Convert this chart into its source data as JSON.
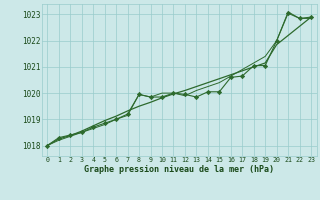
{
  "title": "Graphe pression niveau de la mer (hPa)",
  "background_color": "#cce8e8",
  "plot_bg_color": "#cce8e8",
  "grid_color": "#99cccc",
  "line_color": "#2d6a2d",
  "marker_color": "#2d6a2d",
  "text_color": "#1a4a1a",
  "xlim": [
    -0.5,
    23.5
  ],
  "ylim": [
    1017.6,
    1023.4
  ],
  "yticks": [
    1018,
    1019,
    1020,
    1021,
    1022,
    1023
  ],
  "xticks": [
    0,
    1,
    2,
    3,
    4,
    5,
    6,
    7,
    8,
    9,
    10,
    11,
    12,
    13,
    14,
    15,
    16,
    17,
    18,
    19,
    20,
    21,
    22,
    23
  ],
  "series1_x": [
    0,
    1,
    2,
    3,
    4,
    5,
    6,
    7,
    8,
    9,
    10,
    11,
    12,
    13,
    14,
    15,
    16,
    17,
    18,
    19,
    20,
    21,
    22,
    23
  ],
  "series1_y": [
    1018.0,
    1018.3,
    1018.4,
    1018.5,
    1018.7,
    1018.85,
    1019.0,
    1019.2,
    1019.95,
    1019.85,
    1019.85,
    1020.0,
    1019.95,
    1019.85,
    1020.05,
    1020.05,
    1020.6,
    1020.65,
    1021.05,
    1021.05,
    1022.0,
    1023.05,
    1022.85,
    1022.9
  ],
  "series2_x": [
    0,
    1,
    2,
    3,
    4,
    5,
    6,
    7,
    8,
    9,
    10,
    11,
    12,
    13,
    14,
    15,
    16,
    17,
    18,
    19,
    20,
    21,
    22,
    23
  ],
  "series2_y": [
    1018.0,
    1018.25,
    1018.38,
    1018.55,
    1018.75,
    1018.95,
    1019.12,
    1019.32,
    1019.5,
    1019.65,
    1019.82,
    1019.97,
    1020.1,
    1020.25,
    1020.4,
    1020.55,
    1020.7,
    1020.85,
    1021.0,
    1021.15,
    1021.85,
    1022.2,
    1022.55,
    1022.9
  ],
  "series3_x": [
    0,
    1,
    2,
    3,
    4,
    5,
    6,
    7,
    8,
    9,
    10,
    11,
    12,
    13,
    14,
    15,
    16,
    17,
    18,
    19,
    20,
    21,
    22,
    23
  ],
  "series3_y": [
    1018.0,
    1018.2,
    1018.35,
    1018.5,
    1018.65,
    1018.8,
    1019.0,
    1019.15,
    1019.95,
    1019.85,
    1020.0,
    1020.0,
    1019.9,
    1020.1,
    1020.25,
    1020.4,
    1020.65,
    1020.9,
    1021.15,
    1021.4,
    1022.0,
    1023.1,
    1022.85,
    1022.85
  ],
  "ylabel_fontsize": 5.5,
  "xlabel_fontsize": 6.0,
  "xtick_fontsize": 4.8,
  "ytick_fontsize": 5.5
}
